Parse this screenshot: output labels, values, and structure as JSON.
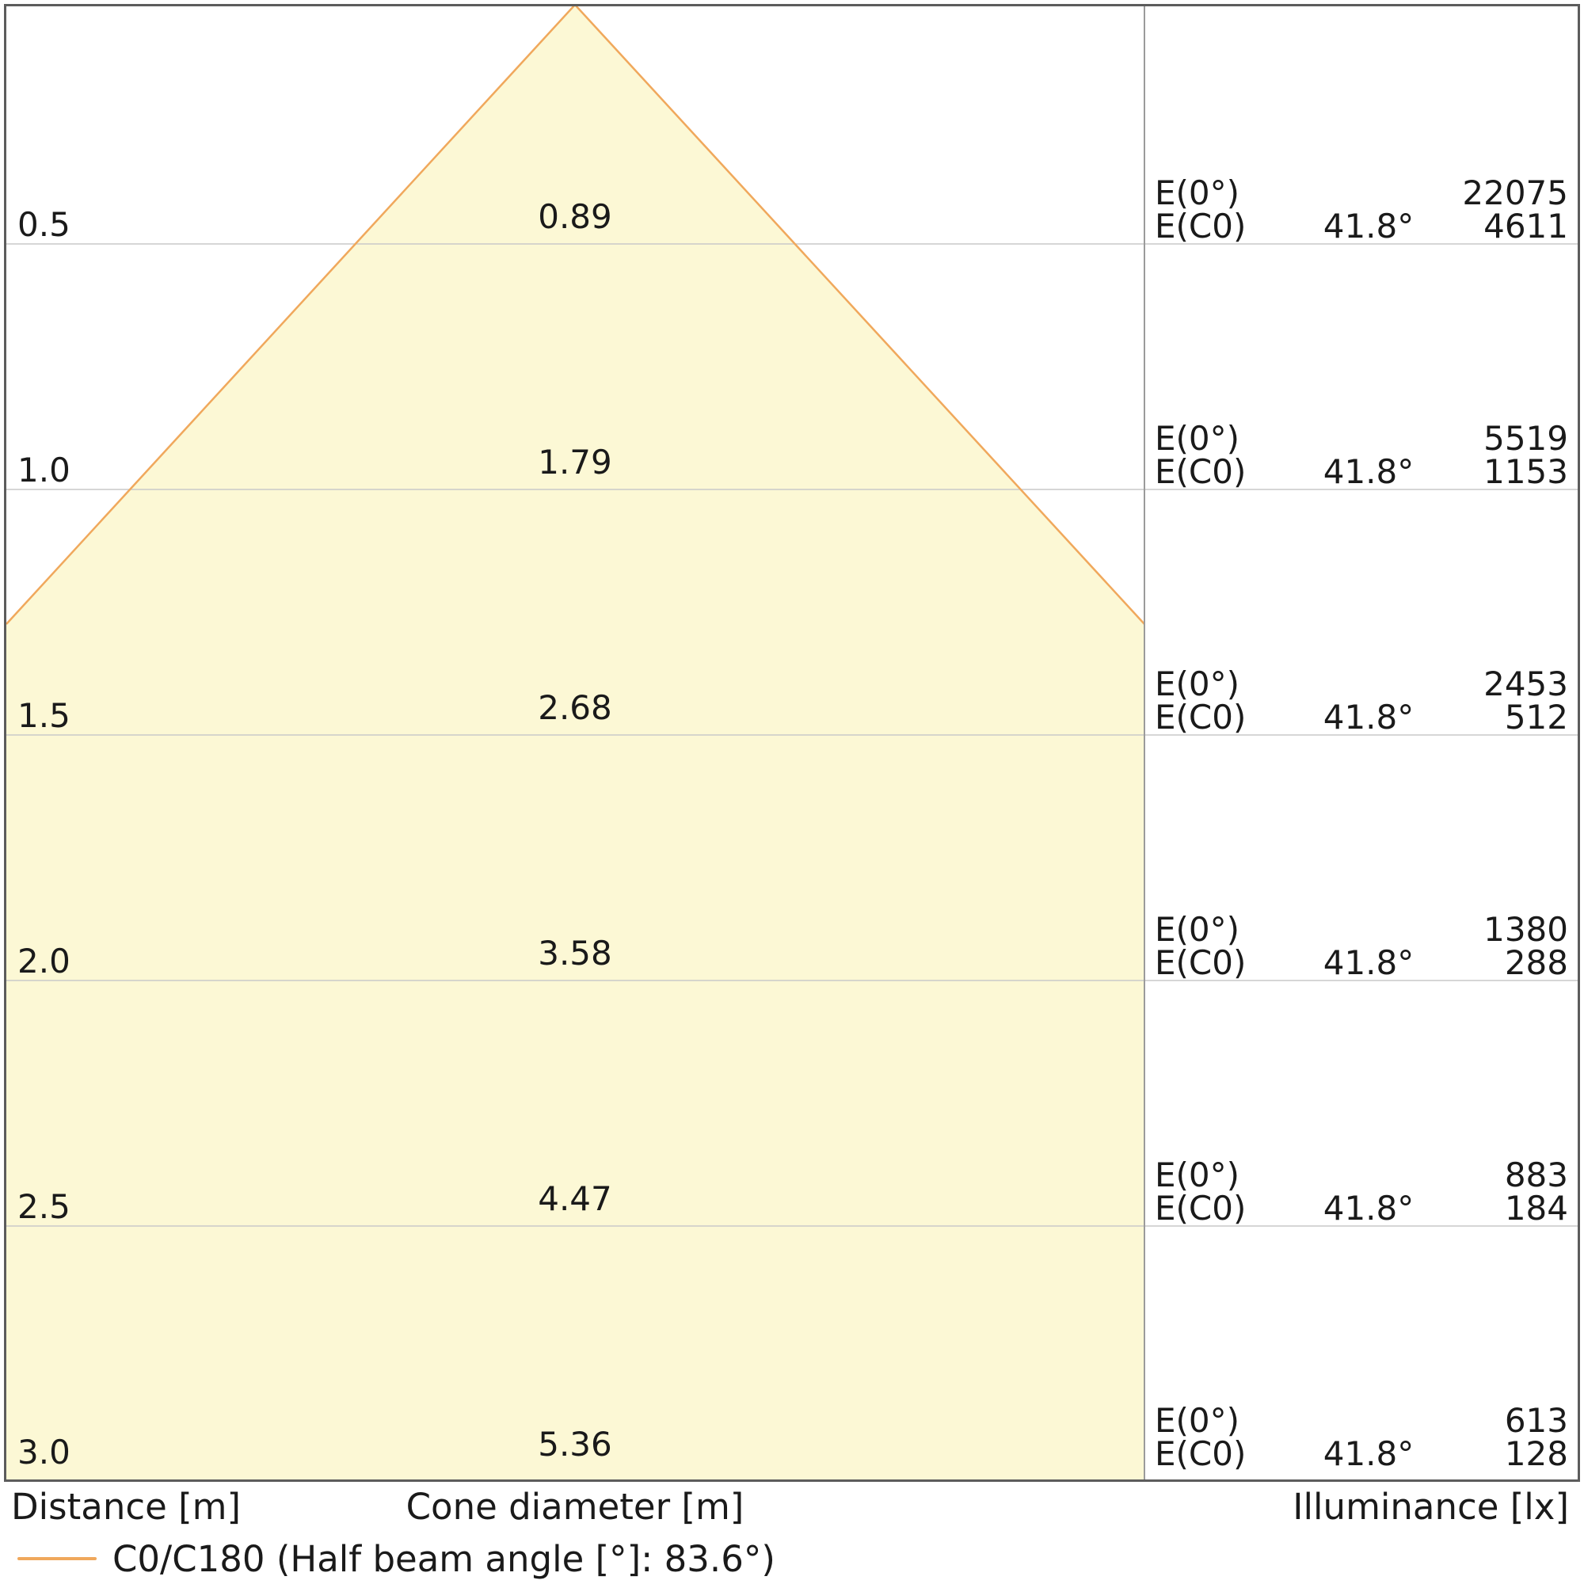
{
  "chart_data": {
    "type": "area",
    "subtype": "luminaire-light-cone-diagram",
    "columns": {
      "distance": "Distance [m]",
      "cone_diameter": "Cone diameter [m]",
      "illuminance": "Illuminance [lx]"
    },
    "legend": {
      "label": "C0/C180 (Half beam angle [°]: 83.6°)",
      "half_beam_angle_deg": 83.6
    },
    "axis": {
      "distance_ticks_m": [
        0.5,
        1.0,
        1.5,
        2.0,
        2.5,
        3.0
      ],
      "grid": true
    },
    "rows": [
      {
        "distance_m": "0.5",
        "cone_diameter_m": "0.89",
        "e0_label": "E(0°)",
        "e0_lx": "22075",
        "ec0_label": "E(C0)",
        "angle": "41.8°",
        "ec0_lx": "4611"
      },
      {
        "distance_m": "1.0",
        "cone_diameter_m": "1.79",
        "e0_label": "E(0°)",
        "e0_lx": "5519",
        "ec0_label": "E(C0)",
        "angle": "41.8°",
        "ec0_lx": "1153"
      },
      {
        "distance_m": "1.5",
        "cone_diameter_m": "2.68",
        "e0_label": "E(0°)",
        "e0_lx": "2453",
        "ec0_label": "E(C0)",
        "angle": "41.8°",
        "ec0_lx": "512"
      },
      {
        "distance_m": "2.0",
        "cone_diameter_m": "3.58",
        "e0_label": "E(0°)",
        "e0_lx": "1380",
        "ec0_label": "E(C0)",
        "angle": "41.8°",
        "ec0_lx": "288"
      },
      {
        "distance_m": "2.5",
        "cone_diameter_m": "4.47",
        "e0_label": "E(0°)",
        "e0_lx": "883",
        "ec0_label": "E(C0)",
        "angle": "41.8°",
        "ec0_lx": "184"
      },
      {
        "distance_m": "3.0",
        "cone_diameter_m": "5.36",
        "e0_label": "E(0°)",
        "e0_lx": "613",
        "ec0_label": "E(C0)",
        "angle": "41.8°",
        "ec0_lx": "128"
      }
    ],
    "colors": {
      "cone_fill": "#FCF8D5",
      "cone_edge": "#F0A85C",
      "gridline": "#C9C9C9",
      "divider": "#9B9B9B",
      "border": "#5C5C5C",
      "text": "#1A1A1A"
    }
  }
}
